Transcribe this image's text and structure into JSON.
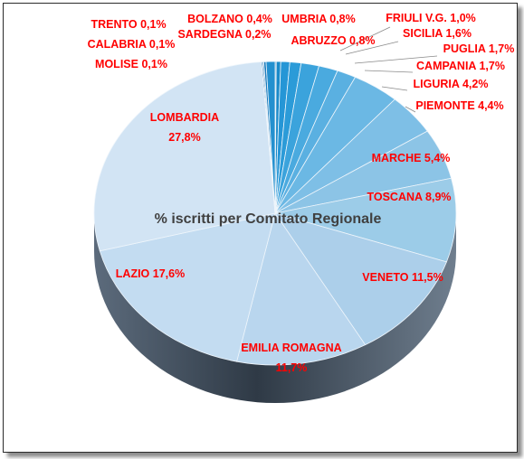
{
  "chart_data": {
    "type": "pie",
    "title": "% iscritti per Comitato Regionale",
    "label_color": "#ff0000",
    "title_color": "#404040",
    "slices": [
      {
        "name": "TRENTO",
        "value": 0.1,
        "label": "TRENTO 0,1%",
        "color": "#1467a8"
      },
      {
        "name": "BOLZANO",
        "value": 0.4,
        "label": "BOLZANO 0,4%",
        "color": "#1a8ac9"
      },
      {
        "name": "UMBRIA",
        "value": 0.8,
        "label": "UMBRIA 0,8%",
        "color": "#2596d6"
      },
      {
        "name": "FRIULI V.G.",
        "value": 1.0,
        "label": "FRIULI V.G. 1,0%",
        "color": "#2b9bd8"
      },
      {
        "name": "SICILIA",
        "value": 1.6,
        "label": "SICILIA 1,6%",
        "color": "#3ba3dc"
      },
      {
        "name": "PUGLIA",
        "value": 1.7,
        "label": "PUGLIA 1,7%",
        "color": "#4aaadf"
      },
      {
        "name": "CAMPANIA",
        "value": 1.7,
        "label": "CAMPANIA 1,7%",
        "color": "#5ab0e1"
      },
      {
        "name": "LIGURIA",
        "value": 4.2,
        "label": "LIGURIA 4,2%",
        "color": "#6bb8e4"
      },
      {
        "name": "PIEMONTE",
        "value": 4.4,
        "label": "PIEMONTE 4,4%",
        "color": "#7ebfe6"
      },
      {
        "name": "MARCHE",
        "value": 5.4,
        "label": "MARCHE 5,4%",
        "color": "#8cc4e6"
      },
      {
        "name": "TOSCANA",
        "value": 8.9,
        "label": "TOSCANA 8,9%",
        "color": "#9ccce8"
      },
      {
        "name": "VENETO",
        "value": 11.5,
        "label": "VENETO 11,5%",
        "color": "#accfea"
      },
      {
        "name": "EMILIA ROMAGNA",
        "value": 11.7,
        "label": "EMILIA ROMAGNA 11,7%",
        "color": "#b9d6ee"
      },
      {
        "name": "LAZIO",
        "value": 17.6,
        "label": "LAZIO 17,6%",
        "color": "#c3dcf1"
      },
      {
        "name": "LOMBARDIA",
        "value": 27.8,
        "label": "LOMBARDIA 27,8%",
        "color": "#d2e4f4"
      },
      {
        "name": "MOLISE",
        "value": 0.1,
        "label": "MOLISE 0,1%",
        "color": "#1b6fb0"
      },
      {
        "name": "CALABRIA",
        "value": 0.1,
        "label": "CALABRIA 0,1%",
        "color": "#1870b0"
      },
      {
        "name": "SARDEGNA",
        "value": 0.2,
        "label": "SARDEGNA 0,2%",
        "color": "#1c7cbc"
      },
      {
        "name": "ABRUZZO",
        "value": 0.8,
        "label": "ABRUZZO 0,8%",
        "color": "#2390cf"
      }
    ]
  }
}
